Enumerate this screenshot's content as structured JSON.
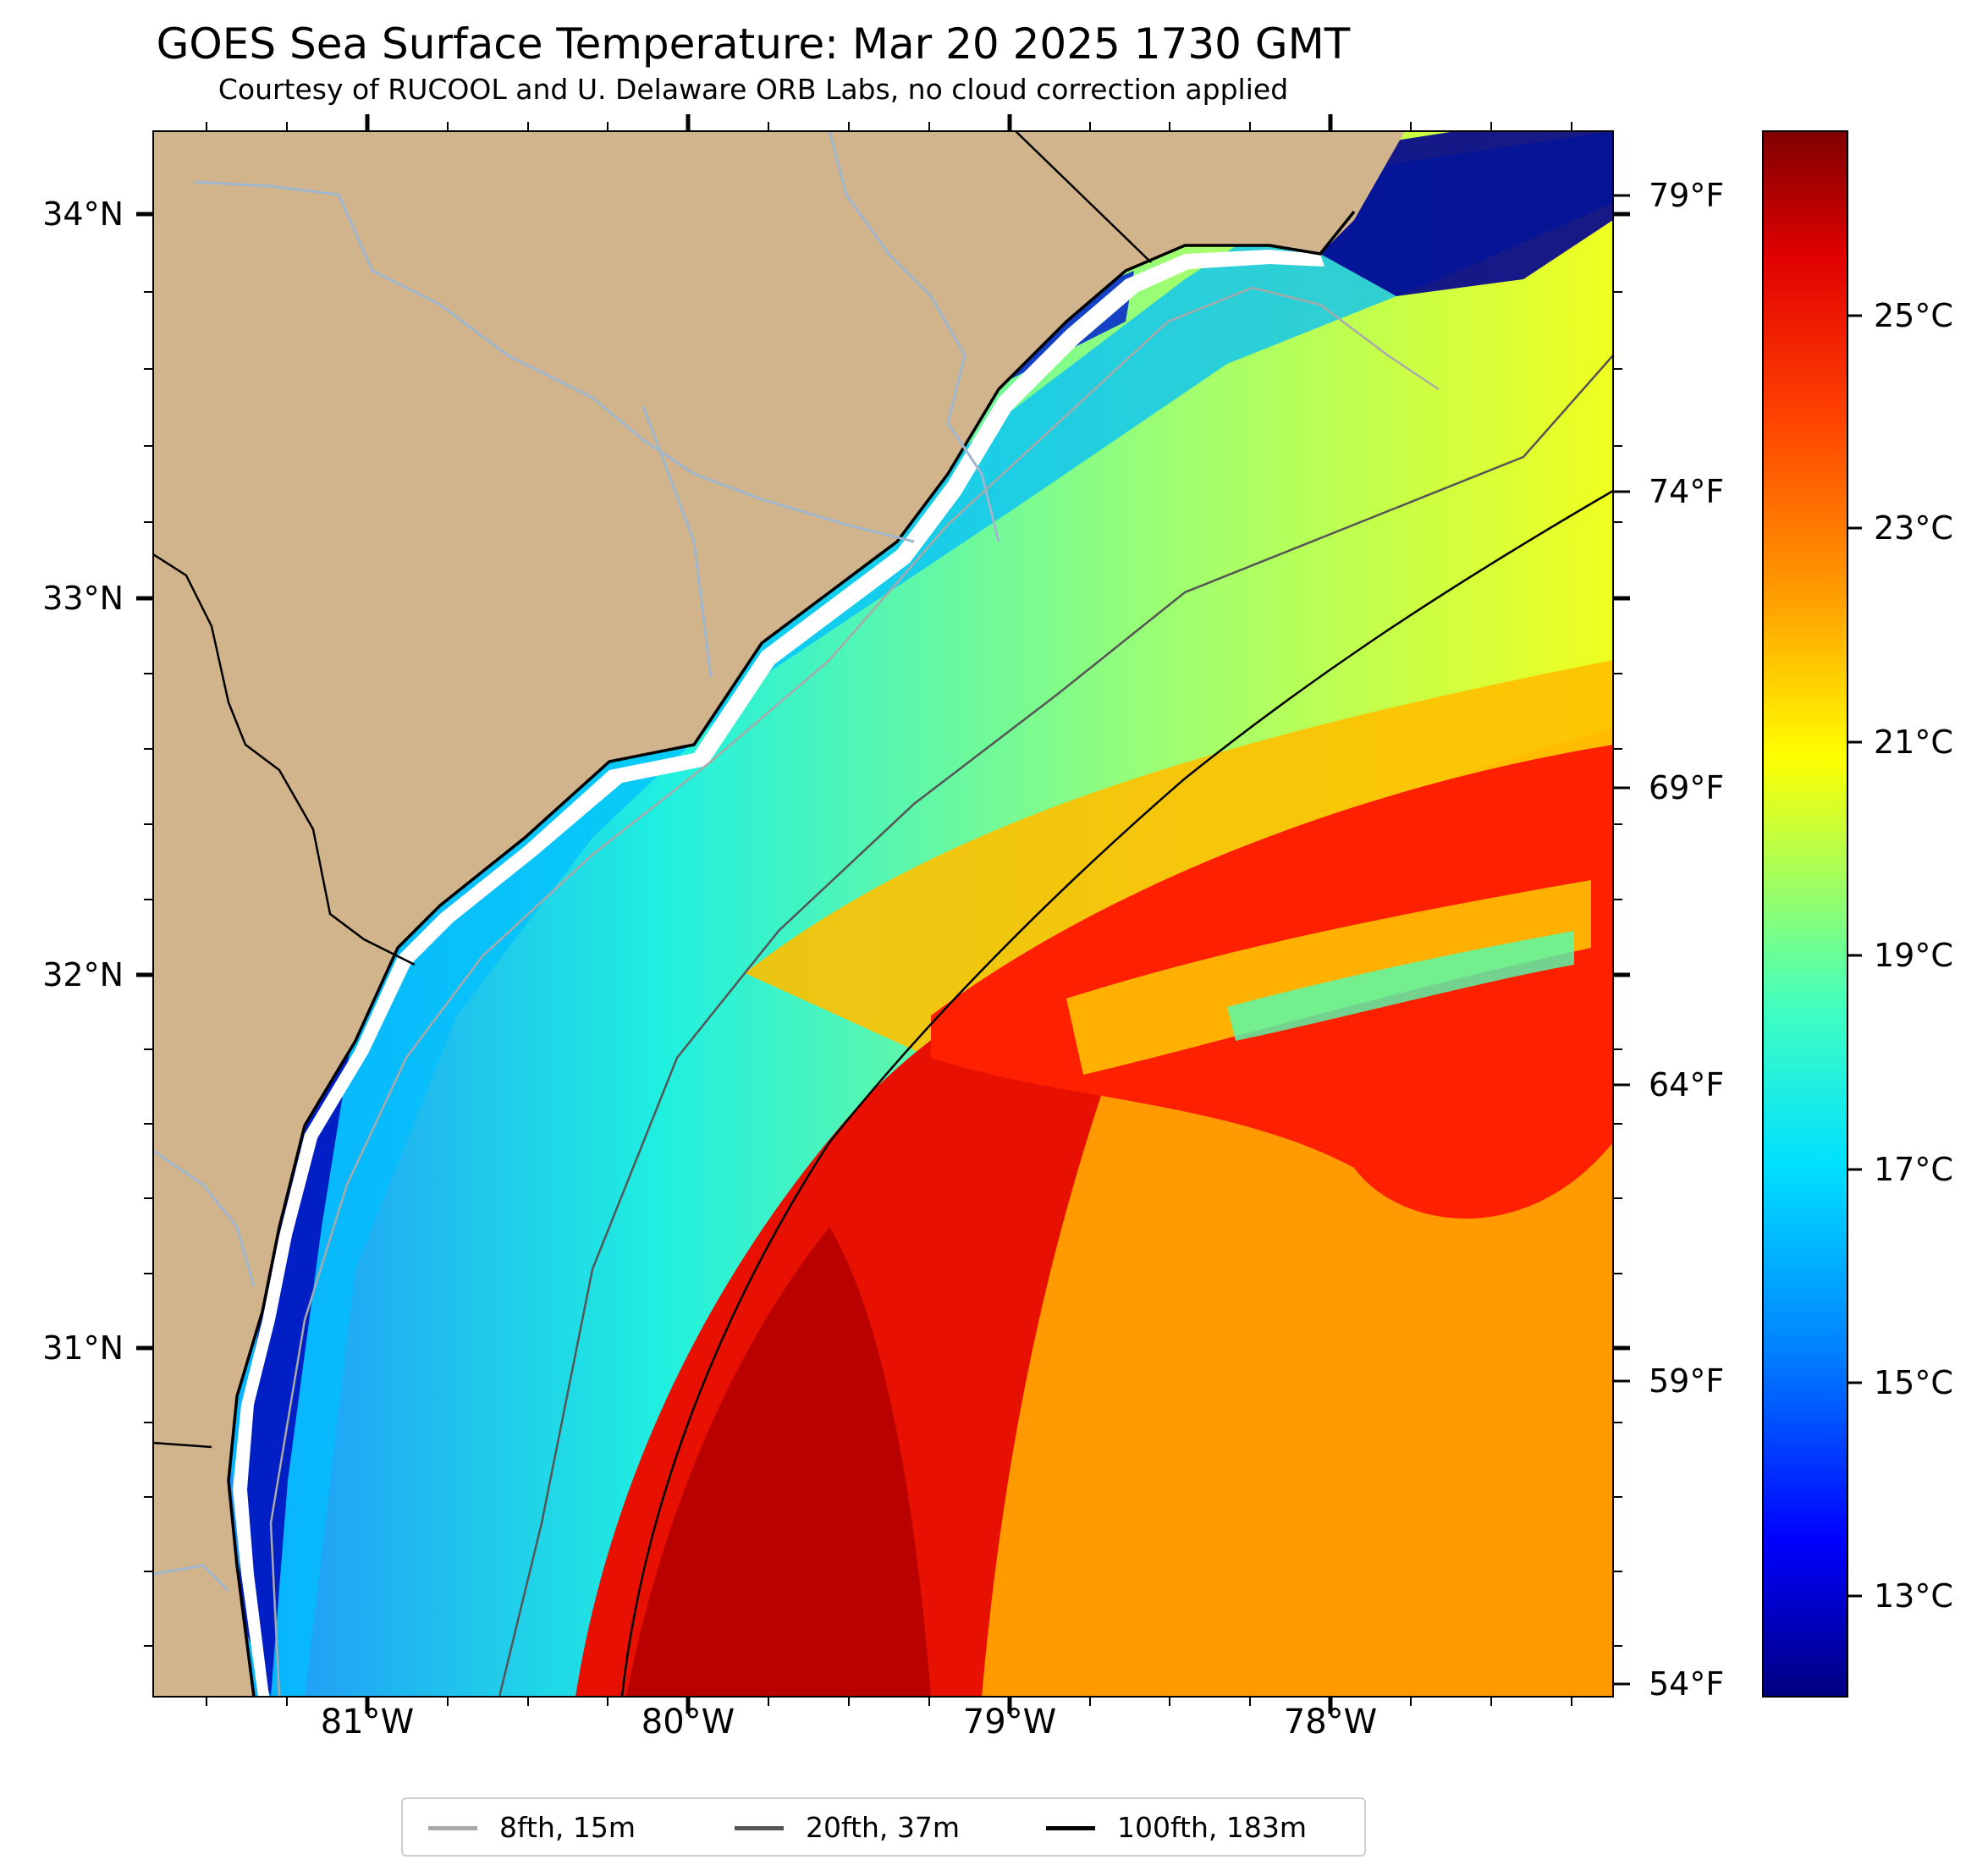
{
  "header": {
    "title": "GOES Sea Surface Temperature: Mar 20 2025 1730 GMT",
    "subtitle": "Courtesy of RUCOOL and U. Delaware ORB Labs, no cloud correction applied"
  },
  "map": {
    "lat_labels": [
      "34°N",
      "33°N",
      "32°N",
      "31°N"
    ],
    "lon_labels": [
      "81°W",
      "80°W",
      "79°W",
      "78°W"
    ],
    "land_color": "#d2b48c",
    "river_color": "#9fb6cd",
    "coast_color": "#000000"
  },
  "colorbar": {
    "fahrenheit_labels": [
      "79°F",
      "74°F",
      "69°F",
      "64°F",
      "59°F",
      "54°F"
    ],
    "celsius_labels": [
      "25°C",
      "23°C",
      "21°C",
      "19°C",
      "17°C",
      "15°C",
      "13°C"
    ],
    "colors": [
      "#000080",
      "#0000ff",
      "#0080ff",
      "#00e0ff",
      "#40ffc0",
      "#a0ff60",
      "#ffff00",
      "#ffa000",
      "#ff4000",
      "#e00000",
      "#800000"
    ]
  },
  "legend": {
    "items": [
      {
        "label": "8fth, 15m",
        "color": "#a9a9a9"
      },
      {
        "label": "20fth, 37m",
        "color": "#555555"
      },
      {
        "label": "100fth, 183m",
        "color": "#000000"
      }
    ]
  }
}
